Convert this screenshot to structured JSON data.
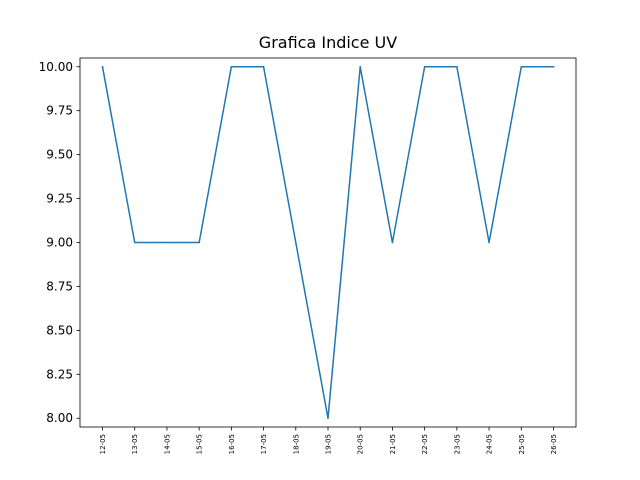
{
  "chart_data": {
    "type": "line",
    "title": "Grafica Indice UV",
    "xlabel": "",
    "ylabel": "",
    "categories": [
      "12-05",
      "13-05",
      "14-05",
      "15-05",
      "16-05",
      "17-05",
      "18-05",
      "19-05",
      "20-05",
      "21-05",
      "22-05",
      "23-05",
      "24-05",
      "25-05",
      "26-05"
    ],
    "series": [
      {
        "values": [
          10,
          9,
          9,
          9,
          10,
          10,
          9,
          8,
          10,
          9,
          10,
          10,
          9,
          10,
          10
        ],
        "color": "#1f77b4"
      }
    ],
    "ylim": [
      7.95,
      10.05
    ],
    "yticks": [
      "8.00",
      "8.25",
      "8.50",
      "8.75",
      "9.00",
      "9.25",
      "9.50",
      "9.75",
      "10.00"
    ],
    "grid": false,
    "legend": "none"
  }
}
